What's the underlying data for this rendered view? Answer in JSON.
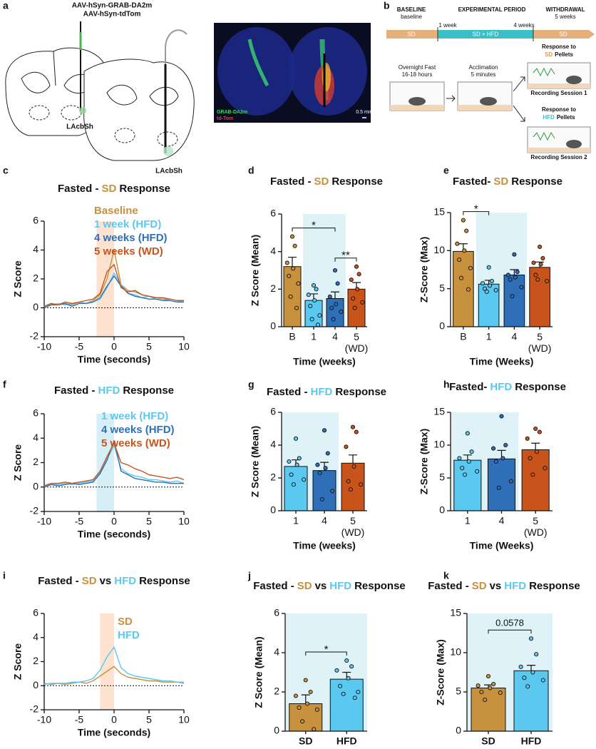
{
  "panel_a": {
    "label": "a",
    "injections": [
      "AAV-hSyn-GRAB-DA2m",
      "AAV-hSyn-tdTom"
    ],
    "region_labels": [
      "LAcbSh",
      "LAcbSh"
    ],
    "image_legend": [
      "GRAB-DA2m",
      "td-Tom"
    ],
    "scale_bar": "0.5 mm"
  },
  "panel_b": {
    "label": "b",
    "phases": [
      {
        "title": "BASELINE",
        "subtitle": "baseline",
        "diet": "SD"
      },
      {
        "title": "EXPERIMENTAL PERIOD",
        "diet": "SD + HFD"
      },
      {
        "title": "WITHDRAWAL",
        "subtitle": "5 weeks",
        "diet": "SD"
      }
    ],
    "timepoints": [
      "1 week",
      "4 weeks"
    ],
    "steps": [
      {
        "title": "Overnight Fast",
        "detail": "16-18 hours"
      },
      {
        "title": "Acclimation",
        "detail": "5 minutes"
      }
    ],
    "sessions": [
      {
        "prompt": "Response to",
        "pellet": "SD",
        "pellet_suffix": "Pellets",
        "name": "Recording Session 1"
      },
      {
        "prompt": "Response to",
        "pellet": "HFD",
        "pellet_suffix": "Pellets",
        "name": "Recording Session 2"
      }
    ]
  },
  "chart_data": [
    {
      "type": "line",
      "panel": "c",
      "title": [
        {
          "text": "Fasted -",
          "color": "#111111"
        },
        {
          "text": "SD",
          "color": "#c8913e"
        },
        {
          "text": "Response",
          "color": "#111111"
        }
      ],
      "xlabel": "Time (seconds)",
      "ylabel": "Z Score",
      "xlim": [
        -10,
        10
      ],
      "ylim": [
        -2,
        6
      ],
      "xticks": [
        -10,
        -5,
        0,
        5,
        10
      ],
      "yticks": [
        -2,
        0,
        2,
        4,
        6
      ],
      "highlight": {
        "range": [
          -2.5,
          0
        ],
        "color": "#fde3cf"
      },
      "zero_line": true,
      "legend": "upper right",
      "x": [
        -10,
        -9,
        -8,
        -7,
        -6,
        -5,
        -4,
        -3,
        -2,
        -1,
        0,
        1,
        2,
        3,
        4,
        5,
        6,
        7,
        8,
        9,
        10
      ],
      "series": [
        {
          "name": "Baseline",
          "color": "#c8913e",
          "values": [
            0.1,
            0.3,
            0.2,
            0.3,
            0.2,
            0.4,
            0.3,
            0.5,
            0.9,
            2.0,
            4.0,
            1.6,
            1.2,
            1.1,
            0.9,
            0.8,
            0.7,
            0.6,
            0.6,
            0.5,
            0.5
          ]
        },
        {
          "name": "1 week (HFD)",
          "color": "#5bc8f0",
          "values": [
            0.1,
            0.2,
            0.3,
            0.2,
            0.3,
            0.4,
            0.3,
            0.4,
            0.6,
            1.4,
            2.4,
            1.6,
            1.0,
            0.9,
            0.7,
            0.8,
            0.6,
            0.5,
            0.6,
            0.5,
            0.4
          ]
        },
        {
          "name": "4 weeks (HFD)",
          "color": "#2f6fb8",
          "values": [
            0.0,
            0.2,
            0.2,
            0.3,
            0.1,
            0.3,
            0.3,
            0.4,
            0.7,
            1.5,
            2.2,
            1.5,
            1.0,
            0.8,
            0.7,
            0.6,
            0.6,
            0.5,
            0.5,
            0.4,
            0.4
          ]
        },
        {
          "name": "5 weeks (WD)",
          "color": "#c8541c",
          "values": [
            0.1,
            0.3,
            0.2,
            0.4,
            0.3,
            0.4,
            0.5,
            0.6,
            1.0,
            2.5,
            3.0,
            1.4,
            1.1,
            1.2,
            0.9,
            0.8,
            0.7,
            0.7,
            0.6,
            0.5,
            0.5
          ]
        }
      ]
    },
    {
      "type": "bar",
      "panel": "d",
      "title": [
        {
          "text": "Fasted -",
          "color": "#111111"
        },
        {
          "text": "SD",
          "color": "#c8913e"
        },
        {
          "text": "Response",
          "color": "#111111"
        }
      ],
      "xlabel": "Time (weeks)",
      "ylabel": "Z Score (Mean)",
      "ylim": [
        0,
        6
      ],
      "yticks": [
        0,
        2,
        4,
        6
      ],
      "categories": [
        "B",
        "1",
        "4",
        "5 (WD)"
      ],
      "colors": [
        "#c8913e",
        "#5bc8f0",
        "#2f6fb8",
        "#c8541c"
      ],
      "values": [
        3.2,
        1.4,
        1.5,
        2.0
      ],
      "errors": [
        0.5,
        0.35,
        0.35,
        0.35
      ],
      "points": [
        [
          4.8,
          4.3,
          3.4,
          3.1,
          2.7,
          2.3,
          1.6,
          1.0
        ],
        [
          2.2,
          2.0,
          1.7,
          1.4,
          1.1,
          0.6,
          0.4,
          0.1
        ],
        [
          3.0,
          2.3,
          1.6,
          1.2,
          1.0,
          0.8,
          0.4
        ],
        [
          3.2,
          2.8,
          2.5,
          2.0,
          1.5,
          1.3,
          1.0
        ]
      ],
      "shade": {
        "categories": [
          1,
          2
        ],
        "color": "#dff2f8"
      },
      "significance": [
        {
          "pair": [
            0,
            2
          ],
          "label": "*"
        },
        {
          "pair": [
            2,
            3
          ],
          "label": "**"
        }
      ]
    },
    {
      "type": "bar",
      "panel": "e",
      "title": [
        {
          "text": "Fasted-",
          "color": "#111111"
        },
        {
          "text": "SD",
          "color": "#c8913e"
        },
        {
          "text": "Response",
          "color": "#111111"
        }
      ],
      "xlabel": "Time (Weeks)",
      "ylabel": "Z-Score (Max)",
      "ylim": [
        0,
        15
      ],
      "yticks": [
        0,
        5,
        10,
        15
      ],
      "categories": [
        "B",
        "1",
        "4",
        "5 (WD)"
      ],
      "colors": [
        "#c8913e",
        "#5bc8f0",
        "#2f6fb8",
        "#c8541c"
      ],
      "values": [
        9.9,
        5.6,
        6.8,
        7.8
      ],
      "errors": [
        1.0,
        0.5,
        0.7,
        0.7
      ],
      "points": [
        [
          14.0,
          12.6,
          10.9,
          10.0,
          8.8,
          7.7,
          6.4,
          4.9
        ],
        [
          7.8,
          6.0,
          5.7,
          5.4,
          5.0,
          4.8,
          4.6
        ],
        [
          9.5,
          7.2,
          6.8,
          6.5,
          6.2,
          5.2,
          4.0
        ],
        [
          10.5,
          9.0,
          8.4,
          8.2,
          6.8,
          6.0,
          6.2
        ]
      ],
      "shade": {
        "categories": [
          1,
          2
        ],
        "color": "#dff2f8"
      },
      "significance": [
        {
          "pair": [
            0,
            1
          ],
          "label": "*"
        }
      ]
    },
    {
      "type": "line",
      "panel": "f",
      "title": [
        {
          "text": "Fasted -",
          "color": "#111111"
        },
        {
          "text": "HFD",
          "color": "#5bc8f0"
        },
        {
          "text": "Response",
          "color": "#111111"
        }
      ],
      "xlabel": "Time (seconds)",
      "ylabel": "Z Score",
      "xlim": [
        -10,
        10
      ],
      "ylim": [
        -2,
        6
      ],
      "xticks": [
        -10,
        -5,
        0,
        5,
        10
      ],
      "yticks": [
        -2,
        0,
        2,
        4,
        6
      ],
      "highlight": {
        "range": [
          -2.5,
          0
        ],
        "color": "#d6eff7"
      },
      "zero_line": true,
      "legend": "upper right",
      "x": [
        -10,
        -9,
        -8,
        -7,
        -6,
        -5,
        -4,
        -3,
        -2,
        -1,
        0,
        1,
        2,
        3,
        4,
        5,
        6,
        7,
        8,
        9,
        10
      ],
      "series": [
        {
          "name": "1 week (HFD)",
          "color": "#5bc8f0",
          "values": [
            0.1,
            0.2,
            0.2,
            0.3,
            0.2,
            0.3,
            0.4,
            0.5,
            1.2,
            2.3,
            3.4,
            1.5,
            1.1,
            0.9,
            0.8,
            0.6,
            0.6,
            0.5,
            0.4,
            0.5,
            0.3
          ]
        },
        {
          "name": "4 weeks (HFD)",
          "color": "#2f6fb8",
          "values": [
            0.0,
            0.2,
            0.1,
            0.2,
            0.3,
            0.2,
            0.3,
            0.4,
            1.1,
            2.2,
            3.8,
            1.3,
            1.0,
            0.7,
            0.6,
            0.5,
            0.4,
            0.4,
            0.3,
            0.3,
            0.3
          ]
        },
        {
          "name": "5 weeks (WD)",
          "color": "#c8541c",
          "values": [
            0.1,
            0.3,
            0.3,
            0.4,
            0.3,
            0.4,
            0.5,
            0.6,
            1.3,
            2.5,
            3.6,
            2.0,
            1.8,
            1.5,
            1.3,
            1.0,
            0.9,
            0.8,
            0.7,
            0.8,
            0.6
          ]
        }
      ]
    },
    {
      "type": "bar",
      "panel": "g",
      "title": [
        {
          "text": "Fasted -",
          "color": "#111111"
        },
        {
          "text": "HFD",
          "color": "#5bc8f0"
        },
        {
          "text": "Response",
          "color": "#111111"
        }
      ],
      "xlabel": "Time (weeks)",
      "ylabel": "Z Score (Mean)",
      "ylim": [
        0,
        6
      ],
      "yticks": [
        0,
        2,
        4,
        6
      ],
      "categories": [
        "1",
        "4",
        "5 (WD)"
      ],
      "colors": [
        "#5bc8f0",
        "#2f6fb8",
        "#c8541c"
      ],
      "values": [
        2.7,
        2.45,
        2.9
      ],
      "errors": [
        0.4,
        0.5,
        0.5
      ],
      "points": [
        [
          4.4,
          3.2,
          3.0,
          2.8,
          2.2,
          1.9,
          1.6
        ],
        [
          4.9,
          3.5,
          2.8,
          2.6,
          2.3,
          1.2,
          0.7
        ],
        [
          5.1,
          4.8,
          3.9,
          2.7,
          1.8,
          1.6,
          1.3
        ]
      ],
      "shade": {
        "categories": [
          0,
          1
        ],
        "color": "#dff2f8"
      }
    },
    {
      "type": "bar",
      "panel": "h",
      "title": [
        {
          "text": "Fasted-",
          "color": "#111111"
        },
        {
          "text": "HFD",
          "color": "#5bc8f0"
        },
        {
          "text": "Response",
          "color": "#111111"
        }
      ],
      "xlabel": "Time (Weeks)",
      "ylabel": "Z-Score (Max)",
      "ylim": [
        0,
        15
      ],
      "yticks": [
        0,
        5,
        10,
        15
      ],
      "categories": [
        "1",
        "4",
        "5 (WD)"
      ],
      "colors": [
        "#5bc8f0",
        "#2f6fb8",
        "#c8541c"
      ],
      "values": [
        7.7,
        7.9,
        9.3
      ],
      "errors": [
        0.8,
        1.3,
        1.0
      ],
      "points": [
        [
          11.8,
          9.0,
          8.0,
          7.5,
          6.5,
          6.0,
          5.5
        ],
        [
          14.4,
          10.0,
          9.5,
          8.0,
          7.5,
          4.5,
          3.5
        ],
        [
          12.5,
          12.0,
          11.0,
          9.0,
          8.0,
          6.5,
          5.5
        ]
      ],
      "shade": {
        "categories": [
          0,
          1
        ],
        "color": "#dff2f8"
      }
    },
    {
      "type": "line",
      "panel": "i",
      "title": [
        {
          "text": "Fasted -",
          "color": "#111111"
        },
        {
          "text": "SD",
          "color": "#c8913e"
        },
        {
          "text": "vs",
          "color": "#111111"
        },
        {
          "text": "HFD",
          "color": "#5bc8f0"
        },
        {
          "text": "Response",
          "color": "#111111"
        }
      ],
      "xlabel": "Time (seconds)",
      "ylabel": "Z Score",
      "xlim": [
        -10,
        10
      ],
      "ylim": [
        -2,
        6
      ],
      "xticks": [
        -10,
        -5,
        0,
        5,
        10
      ],
      "yticks": [
        -2,
        0,
        2,
        4,
        6
      ],
      "highlight": {
        "range": [
          -2,
          0
        ],
        "color": "#fde3cf"
      },
      "zero_line": true,
      "legend": "upper right",
      "x": [
        -10,
        -9,
        -8,
        -7,
        -6,
        -5,
        -4,
        -3,
        -2,
        -1,
        0,
        1,
        2,
        3,
        4,
        5,
        6,
        7,
        8,
        9,
        10
      ],
      "series": [
        {
          "name": "SD",
          "color": "#c8913e",
          "values": [
            0.2,
            0.1,
            0.2,
            0.1,
            0.2,
            0.3,
            0.2,
            0.4,
            0.8,
            1.2,
            1.6,
            1.0,
            0.7,
            0.6,
            0.5,
            0.4,
            0.4,
            0.3,
            0.3,
            0.3,
            0.2
          ]
        },
        {
          "name": "HFD",
          "color": "#5bc8f0",
          "values": [
            0.1,
            0.2,
            0.2,
            0.2,
            0.3,
            0.3,
            0.4,
            0.6,
            1.3,
            2.4,
            3.2,
            1.5,
            1.0,
            0.8,
            0.7,
            0.6,
            0.5,
            0.4,
            0.4,
            0.3,
            0.3
          ]
        }
      ]
    },
    {
      "type": "bar",
      "panel": "j",
      "title": [
        {
          "text": "Fasted -",
          "color": "#111111"
        },
        {
          "text": "SD",
          "color": "#c8913e"
        },
        {
          "text": "vs",
          "color": "#111111"
        },
        {
          "text": "HFD",
          "color": "#5bc8f0"
        },
        {
          "text": "Response",
          "color": "#111111"
        }
      ],
      "ylabel": "Z Score (Mean)",
      "ylim": [
        0,
        6
      ],
      "yticks": [
        0,
        2,
        4,
        6
      ],
      "categories": [
        "SD",
        "HFD"
      ],
      "colors": [
        "#c8913e",
        "#5bc8f0"
      ],
      "values": [
        1.4,
        2.65
      ],
      "errors": [
        0.45,
        0.35
      ],
      "points": [
        [
          2.6,
          2.0,
          1.8,
          1.4,
          1.2,
          1.1,
          0.5,
          0.1
        ],
        [
          3.6,
          3.3,
          3.1,
          2.7,
          2.3,
          2.0,
          1.9,
          1.7
        ]
      ],
      "shade": {
        "categories": [
          0,
          1
        ],
        "color": "#dff2f8"
      },
      "significance": [
        {
          "pair": [
            0,
            1
          ],
          "label": "*"
        }
      ]
    },
    {
      "type": "bar",
      "panel": "k",
      "title": [
        {
          "text": "Fasted -",
          "color": "#111111"
        },
        {
          "text": "SD",
          "color": "#c8913e"
        },
        {
          "text": "vs",
          "color": "#111111"
        },
        {
          "text": "HFD",
          "color": "#5bc8f0"
        },
        {
          "text": "Response",
          "color": "#111111"
        }
      ],
      "ylabel": "Z-Score (Max)",
      "ylim": [
        0,
        15
      ],
      "yticks": [
        0,
        5,
        10,
        15
      ],
      "categories": [
        "SD",
        "HFD"
      ],
      "colors": [
        "#c8913e",
        "#5bc8f0"
      ],
      "values": [
        5.5,
        7.7
      ],
      "errors": [
        0.4,
        0.7
      ],
      "points": [
        [
          7.0,
          6.0,
          5.8,
          5.5,
          5.0,
          4.9,
          4.0
        ],
        [
          11.8,
          9.8,
          8.2,
          7.5,
          6.8,
          6.5,
          5.7
        ]
      ],
      "shade": {
        "categories": [
          0,
          1
        ],
        "color": "#dff2f8"
      },
      "significance": [
        {
          "pair": [
            0,
            1
          ],
          "label": "0.0578"
        }
      ]
    }
  ]
}
